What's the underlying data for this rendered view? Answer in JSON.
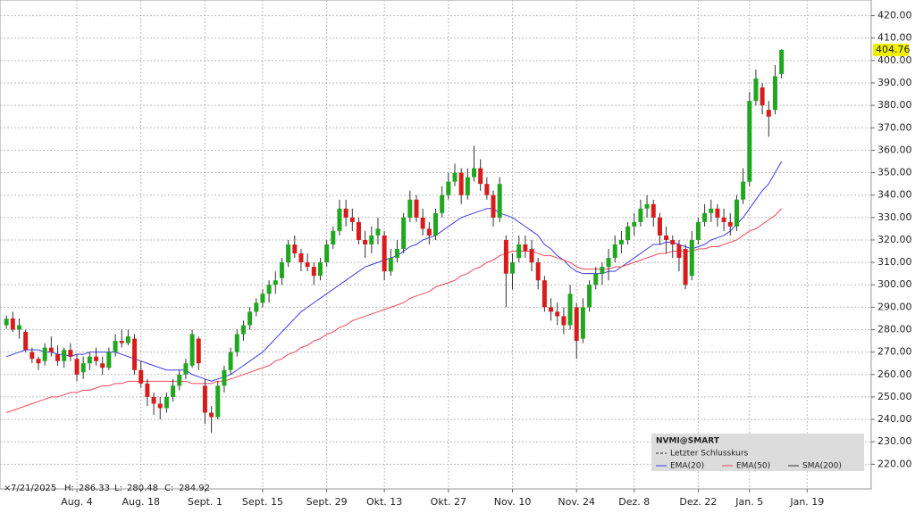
{
  "chart_data": {
    "type": "candlestick",
    "ylim": [
      209,
      427
    ],
    "yticks": [
      {
        "value": 220,
        "label": "220.00"
      },
      {
        "value": 230,
        "label": "230.00"
      },
      {
        "value": 240,
        "label": "240.00"
      },
      {
        "value": 250,
        "label": "250.00"
      },
      {
        "value": 260,
        "label": "260.00"
      },
      {
        "value": 270,
        "label": "270.00"
      },
      {
        "value": 280,
        "label": "280.00"
      },
      {
        "value": 290,
        "label": "290.00"
      },
      {
        "value": 300,
        "label": "300.00"
      },
      {
        "value": 310,
        "label": "310.00"
      },
      {
        "value": 320,
        "label": "320.00"
      },
      {
        "value": 330,
        "label": "330.00"
      },
      {
        "value": 340,
        "label": "340.00"
      },
      {
        "value": 350,
        "label": "350.00"
      },
      {
        "value": 360,
        "label": "360.00"
      },
      {
        "value": 370,
        "label": "370.00"
      },
      {
        "value": 380,
        "label": "380.00"
      },
      {
        "value": 390,
        "label": "390.00"
      },
      {
        "value": 400,
        "label": "400.00"
      },
      {
        "value": 410,
        "label": "410.00"
      },
      {
        "value": 420,
        "label": "420.00"
      }
    ],
    "xlim": [
      -1,
      135
    ],
    "xticks": [
      {
        "value": 11,
        "label": "Aug. 4"
      },
      {
        "value": 21,
        "label": "Aug. 18"
      },
      {
        "value": 31,
        "label": "Sept. 1"
      },
      {
        "value": 40,
        "label": "Sept. 15"
      },
      {
        "value": 50,
        "label": "Sept. 29"
      },
      {
        "value": 59,
        "label": "Okt. 13"
      },
      {
        "value": 69,
        "label": "Okt. 27"
      },
      {
        "value": 79,
        "label": "Nov. 10"
      },
      {
        "value": 89,
        "label": "Nov. 24"
      },
      {
        "value": 98,
        "label": "Dez. 8"
      },
      {
        "value": 108,
        "label": "Dez. 22"
      },
      {
        "value": 116,
        "label": "Jan. 5"
      },
      {
        "value": 125,
        "label": "Jan. 19"
      }
    ],
    "grid": true,
    "up_color": "#1fa81f",
    "down_color": "#d81c1c",
    "ohlc": [
      [
        282,
        286.33,
        280.48,
        284.92
      ],
      [
        285,
        288,
        279,
        280
      ],
      [
        280,
        285,
        276,
        282
      ],
      [
        279,
        280,
        270,
        271
      ],
      [
        270,
        272,
        265,
        267
      ],
      [
        267,
        268,
        262,
        265
      ],
      [
        266,
        274,
        264,
        272
      ],
      [
        272,
        277,
        268,
        270
      ],
      [
        269,
        273,
        264,
        266
      ],
      [
        266,
        272,
        263,
        271
      ],
      [
        271,
        274,
        266,
        268
      ],
      [
        267,
        269,
        257,
        260
      ],
      [
        261,
        268,
        258,
        265
      ],
      [
        265,
        270,
        262,
        268
      ],
      [
        268,
        272,
        264,
        266
      ],
      [
        265,
        268,
        260,
        263
      ],
      [
        263,
        272,
        262,
        270
      ],
      [
        270,
        278,
        268,
        275
      ],
      [
        275,
        280,
        272,
        274
      ],
      [
        274,
        280,
        273,
        277
      ],
      [
        276,
        278,
        260,
        262
      ],
      [
        262,
        266,
        254,
        256
      ],
      [
        256,
        258,
        246,
        250
      ],
      [
        250,
        252,
        242,
        247
      ],
      [
        247,
        250,
        240,
        245
      ],
      [
        245,
        252,
        243,
        250
      ],
      [
        250,
        258,
        248,
        255
      ],
      [
        255,
        262,
        253,
        260
      ],
      [
        260,
        267,
        258,
        265
      ],
      [
        264,
        280,
        263,
        278
      ],
      [
        276,
        277,
        262,
        265
      ],
      [
        255,
        258,
        238,
        243
      ],
      [
        243,
        246,
        234,
        241
      ],
      [
        241,
        257,
        240,
        255
      ],
      [
        255,
        264,
        252,
        262
      ],
      [
        262,
        272,
        260,
        270
      ],
      [
        270,
        280,
        268,
        278
      ],
      [
        278,
        284,
        275,
        282
      ],
      [
        282,
        290,
        280,
        288
      ],
      [
        288,
        294,
        286,
        292
      ],
      [
        292,
        298,
        290,
        296
      ],
      [
        296,
        302,
        292,
        300
      ],
      [
        300,
        306,
        296,
        302
      ],
      [
        303,
        312,
        300,
        310
      ],
      [
        310,
        320,
        308,
        318
      ],
      [
        318,
        322,
        312,
        314
      ],
      [
        314,
        316,
        306,
        310
      ],
      [
        310,
        314,
        306,
        308
      ],
      [
        308,
        310,
        300,
        304
      ],
      [
        304,
        312,
        302,
        310
      ],
      [
        310,
        320,
        308,
        318
      ],
      [
        318,
        326,
        316,
        324
      ],
      [
        324,
        338,
        322,
        334
      ],
      [
        334,
        338,
        326,
        330
      ],
      [
        330,
        334,
        324,
        328
      ],
      [
        328,
        330,
        318,
        320
      ],
      [
        320,
        324,
        312,
        318
      ],
      [
        318,
        326,
        314,
        322
      ],
      [
        322,
        330,
        318,
        325
      ],
      [
        322,
        324,
        302,
        306
      ],
      [
        306,
        316,
        304,
        312
      ],
      [
        312,
        320,
        310,
        316
      ],
      [
        316,
        332,
        314,
        330
      ],
      [
        330,
        342,
        328,
        338
      ],
      [
        338,
        340,
        328,
        330
      ],
      [
        330,
        334,
        322,
        325
      ],
      [
        325,
        328,
        318,
        322
      ],
      [
        322,
        334,
        320,
        332
      ],
      [
        332,
        344,
        330,
        340
      ],
      [
        340,
        350,
        338,
        346
      ],
      [
        346,
        354,
        344,
        350
      ],
      [
        350,
        352,
        336,
        340
      ],
      [
        340,
        352,
        338,
        348
      ],
      [
        348,
        362,
        346,
        352
      ],
      [
        352,
        356,
        342,
        345
      ],
      [
        345,
        348,
        338,
        340
      ],
      [
        340,
        342,
        326,
        330
      ],
      [
        330,
        348,
        328,
        345
      ],
      [
        320,
        322,
        290,
        305
      ],
      [
        305,
        314,
        298,
        310
      ],
      [
        312,
        322,
        310,
        318
      ],
      [
        318,
        322,
        312,
        315
      ],
      [
        316,
        320,
        306,
        310
      ],
      [
        310,
        312,
        298,
        302
      ],
      [
        302,
        304,
        288,
        290
      ],
      [
        290,
        294,
        284,
        288
      ],
      [
        288,
        292,
        282,
        286
      ],
      [
        286,
        290,
        278,
        282
      ],
      [
        282,
        300,
        280,
        296
      ],
      [
        290,
        292,
        267,
        275
      ],
      [
        276,
        294,
        274,
        290
      ],
      [
        290,
        302,
        288,
        300
      ],
      [
        300,
        308,
        298,
        305
      ],
      [
        305,
        310,
        300,
        308
      ],
      [
        308,
        316,
        302,
        312
      ],
      [
        312,
        322,
        310,
        318
      ],
      [
        318,
        324,
        314,
        320
      ],
      [
        320,
        328,
        318,
        326
      ],
      [
        326,
        332,
        322,
        328
      ],
      [
        328,
        338,
        326,
        334
      ],
      [
        334,
        340,
        330,
        336
      ],
      [
        336,
        338,
        326,
        330
      ],
      [
        330,
        332,
        318,
        322
      ],
      [
        322,
        326,
        314,
        320
      ],
      [
        320,
        322,
        312,
        318
      ],
      [
        318,
        320,
        306,
        312
      ],
      [
        316,
        318,
        298,
        300
      ],
      [
        304,
        324,
        302,
        320
      ],
      [
        320,
        330,
        318,
        328
      ],
      [
        328,
        336,
        326,
        332
      ],
      [
        332,
        338,
        328,
        334
      ],
      [
        334,
        336,
        326,
        330
      ],
      [
        330,
        334,
        324,
        328
      ],
      [
        328,
        332,
        322,
        326
      ],
      [
        326,
        340,
        324,
        338
      ],
      [
        338,
        352,
        336,
        346
      ],
      [
        346,
        386,
        344,
        382
      ],
      [
        382,
        396,
        380,
        392
      ],
      [
        388,
        390,
        376,
        380
      ],
      [
        378,
        382,
        366,
        375
      ],
      [
        378,
        398,
        376,
        393
      ],
      [
        394,
        405,
        392,
        404.76
      ]
    ],
    "series": [
      {
        "name": "EMA(20)",
        "color": "#3b3be8",
        "values": [
          268,
          269,
          270,
          271,
          271,
          271,
          270,
          270,
          269,
          269,
          268,
          269,
          269,
          270,
          270,
          270,
          270,
          270,
          269,
          268,
          267,
          266,
          265,
          264,
          263,
          262,
          262,
          262,
          262,
          260,
          259,
          258,
          257,
          258,
          259,
          260,
          262,
          264,
          266,
          268,
          270,
          273,
          276,
          279,
          282,
          285,
          288,
          290,
          292,
          294,
          296,
          298,
          300,
          302,
          304,
          306,
          308,
          309,
          310,
          311,
          312,
          313,
          315,
          317,
          318,
          320,
          321,
          322,
          324,
          326,
          328,
          330,
          331,
          332,
          333,
          334,
          334,
          332,
          331,
          330,
          328,
          326,
          324,
          322,
          318,
          316,
          313,
          311,
          308,
          306,
          305,
          305,
          305,
          305,
          306,
          306,
          308,
          310,
          312,
          314,
          316,
          318,
          318,
          319,
          319,
          318,
          317,
          316,
          317,
          318,
          320,
          321,
          322,
          324,
          327,
          330,
          334,
          338,
          342,
          345,
          350,
          355
        ]
      },
      {
        "name": "EMA(50)",
        "color": "#f04858",
        "values": [
          243,
          244,
          245,
          246,
          247,
          248,
          249,
          250,
          250,
          251,
          252,
          252,
          253,
          253,
          254,
          255,
          255,
          256,
          256,
          257,
          257,
          257,
          257,
          257,
          257,
          257,
          257,
          257,
          257,
          256,
          256,
          256,
          256,
          257,
          257,
          258,
          259,
          260,
          261,
          262,
          263,
          264,
          266,
          267,
          269,
          270,
          272,
          273,
          275,
          276,
          278,
          279,
          281,
          282,
          284,
          285,
          286,
          287,
          288,
          289,
          290,
          291,
          292,
          294,
          295,
          296,
          297,
          299,
          300,
          301,
          302,
          304,
          305,
          307,
          308,
          310,
          311,
          313,
          314,
          315,
          315,
          315,
          315,
          314,
          313,
          313,
          312,
          311,
          310,
          308,
          307,
          307,
          307,
          307,
          307,
          308,
          308,
          309,
          310,
          311,
          312,
          313,
          314,
          314,
          315,
          315,
          315,
          315,
          316,
          316,
          317,
          317,
          318,
          319,
          320,
          322,
          324,
          325,
          327,
          329,
          331,
          334
        ]
      }
    ],
    "legend": {
      "title": "NVMI@SMART",
      "entries": [
        "Letzter Schlusskurs",
        "SMA(200)"
      ]
    },
    "info": {
      "date": "7/21/2025",
      "labels": [
        "H:",
        "L:",
        "C:"
      ]
    }
  }
}
